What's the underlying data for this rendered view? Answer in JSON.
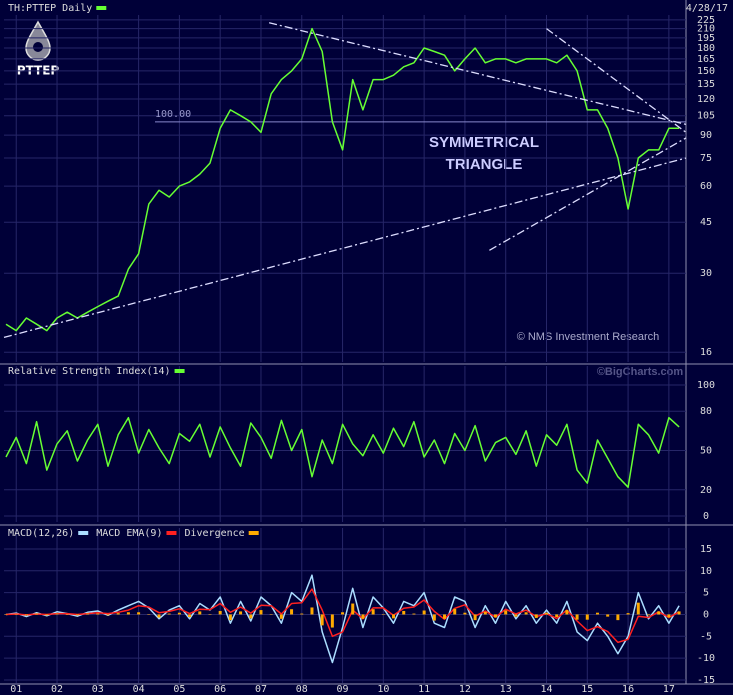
{
  "chart_data": [
    {
      "type": "line",
      "date": "4/28/17",
      "logo": "PTTEP",
      "log_scale": true,
      "grid": true,
      "x": [
        2000.75,
        2001,
        2001.25,
        2001.5,
        2001.75,
        2002,
        2002.25,
        2002.5,
        2002.75,
        2003,
        2003.25,
        2003.5,
        2003.75,
        2004,
        2004.25,
        2004.5,
        2004.75,
        2005,
        2005.25,
        2005.5,
        2005.75,
        2006,
        2006.25,
        2006.5,
        2006.75,
        2007,
        2007.25,
        2007.5,
        2007.75,
        2008,
        2008.25,
        2008.5,
        2008.75,
        2009,
        2009.25,
        2009.5,
        2009.75,
        2010,
        2010.25,
        2010.5,
        2010.75,
        2011,
        2011.25,
        2011.5,
        2011.75,
        2012,
        2012.25,
        2012.5,
        2012.75,
        2013,
        2013.25,
        2013.5,
        2013.75,
        2014,
        2014.25,
        2014.5,
        2014.75,
        2015,
        2015.25,
        2015.5,
        2015.75,
        2016,
        2016.25,
        2016.5,
        2016.75,
        2017,
        2017.25
      ],
      "series": [
        {
          "name": "TH:PTTEP Daily",
          "color": "#66ff33",
          "values": [
            20,
            19,
            21,
            20,
            19,
            21,
            22,
            21,
            22,
            23,
            24,
            25,
            31,
            35,
            52,
            58,
            55,
            60,
            62,
            66,
            72,
            95,
            110,
            105,
            100,
            92,
            125,
            140,
            150,
            165,
            210,
            175,
            100,
            80,
            140,
            110,
            140,
            140,
            145,
            155,
            160,
            180,
            175,
            170,
            150,
            165,
            180,
            160,
            165,
            165,
            160,
            165,
            165,
            165,
            160,
            170,
            150,
            110,
            110,
            95,
            75,
            50,
            75,
            80,
            80,
            95,
            95
          ]
        }
      ],
      "ylim": [
        14.8,
        234
      ],
      "yticks": [
        16,
        30,
        45,
        60,
        75,
        90,
        105,
        120,
        135,
        150,
        165,
        180,
        195,
        210,
        225
      ],
      "reference_line": {
        "value": 100,
        "label": "100.00"
      },
      "trendlines": [
        {
          "x": [
            2000.7,
            2017.42
          ],
          "y": [
            18,
            75
          ]
        },
        {
          "x": [
            2007.2,
            2017.42
          ],
          "y": [
            220,
            98
          ]
        },
        {
          "x": [
            2014.0,
            2017.42
          ],
          "y": [
            210,
            92
          ]
        },
        {
          "x": [
            2012.6,
            2017.42
          ],
          "y": [
            36,
            88
          ]
        }
      ],
      "annotation": [
        "SYMMETRICAL",
        "TRIANGLE"
      ],
      "source": "© NMS Investment Research"
    },
    {
      "type": "line",
      "grid": true,
      "source": "©BigCharts.com",
      "x": [
        2000.75,
        2001,
        2001.25,
        2001.5,
        2001.75,
        2002,
        2002.25,
        2002.5,
        2002.75,
        2003,
        2003.25,
        2003.5,
        2003.75,
        2004,
        2004.25,
        2004.5,
        2004.75,
        2005,
        2005.25,
        2005.5,
        2005.75,
        2006,
        2006.25,
        2006.5,
        2006.75,
        2007,
        2007.25,
        2007.5,
        2007.75,
        2008,
        2008.25,
        2008.5,
        2008.75,
        2009,
        2009.25,
        2009.5,
        2009.75,
        2010,
        2010.25,
        2010.5,
        2010.75,
        2011,
        2011.25,
        2011.5,
        2011.75,
        2012,
        2012.25,
        2012.5,
        2012.75,
        2013,
        2013.25,
        2013.5,
        2013.75,
        2014,
        2014.25,
        2014.5,
        2014.75,
        2015,
        2015.25,
        2015.5,
        2015.75,
        2016,
        2016.25,
        2016.5,
        2016.75,
        2017,
        2017.25
      ],
      "series": [
        {
          "name": "Relative Strength Index(14)",
          "color": "#66ff33",
          "values": [
            45,
            60,
            40,
            72,
            35,
            55,
            65,
            42,
            58,
            70,
            38,
            62,
            75,
            48,
            66,
            52,
            40,
            63,
            57,
            70,
            45,
            68,
            52,
            38,
            71,
            60,
            44,
            73,
            50,
            66,
            30,
            58,
            40,
            70,
            55,
            46,
            62,
            48,
            67,
            53,
            72,
            45,
            58,
            40,
            63,
            50,
            69,
            42,
            56,
            60,
            47,
            65,
            38,
            62,
            54,
            70,
            35,
            25,
            58,
            44,
            30,
            22,
            70,
            62,
            48,
            75,
            68
          ]
        }
      ],
      "ylim": [
        -4.6,
        114.5
      ],
      "yticks": [
        0,
        20,
        50,
        80,
        100
      ]
    },
    {
      "type": "line",
      "grid": true,
      "x": [
        2000.75,
        2001,
        2001.25,
        2001.5,
        2001.75,
        2002,
        2002.25,
        2002.5,
        2002.75,
        2003,
        2003.25,
        2003.5,
        2003.75,
        2004,
        2004.25,
        2004.5,
        2004.75,
        2005,
        2005.25,
        2005.5,
        2005.75,
        2006,
        2006.25,
        2006.5,
        2006.75,
        2007,
        2007.25,
        2007.5,
        2007.75,
        2008,
        2008.25,
        2008.5,
        2008.75,
        2009,
        2009.25,
        2009.5,
        2009.75,
        2010,
        2010.25,
        2010.5,
        2010.75,
        2011,
        2011.25,
        2011.5,
        2011.75,
        2012,
        2012.25,
        2012.5,
        2012.75,
        2013,
        2013.25,
        2013.5,
        2013.75,
        2014,
        2014.25,
        2014.5,
        2014.75,
        2015,
        2015.25,
        2015.5,
        2015.75,
        2016,
        2016.25,
        2016.5,
        2016.75,
        2017,
        2017.25
      ],
      "series": [
        {
          "name": "MACD(12,26)",
          "color": "#aaddff",
          "values": [
            0,
            0.3,
            -0.5,
            0.4,
            -0.3,
            0.6,
            0.2,
            -0.4,
            0.5,
            0.8,
            -0.2,
            1,
            2,
            3,
            1.5,
            -1,
            1,
            2,
            -1,
            2.5,
            1,
            4,
            -2,
            3,
            -1.5,
            4,
            2,
            -2,
            5,
            3,
            9,
            -4,
            -11,
            -3,
            6,
            -3,
            4,
            1.5,
            -2,
            3,
            2,
            5,
            -2,
            -3,
            4,
            3,
            -3,
            2,
            -2,
            3,
            -1,
            2,
            -2,
            1,
            -2,
            3,
            -4,
            -6,
            -2,
            -5,
            -9,
            -5,
            5,
            -1,
            2,
            -2,
            2
          ]
        },
        {
          "name": "MACD EMA(9)",
          "color": "#ff2020",
          "values": [
            0,
            0.1,
            -0.1,
            0.1,
            0,
            0.2,
            0.2,
            0,
            0.2,
            0.4,
            0.2,
            0.5,
            1,
            2,
            1.7,
            0.4,
            0.7,
            1.3,
            0.2,
            1.2,
            1.1,
            2.5,
            0.5,
            1.7,
            0.3,
            2.1,
            2,
            0.1,
            2.5,
            2.7,
            5.8,
            1,
            -5,
            -4,
            1,
            -1,
            1.5,
            1.5,
            -0.2,
            1.4,
            1.7,
            3.3,
            0.7,
            -1.1,
            1.4,
            2.2,
            -0.4,
            0.8,
            -0.6,
            1.2,
            0.1,
            1,
            -0.5,
            0.2,
            -0.9,
            1,
            -1.5,
            -3.7,
            -2.8,
            -3.9,
            -6.4,
            -5.7,
            -0.4,
            -0.7,
            0.6,
            -0.7,
            0.6
          ]
        },
        {
          "name": "Divergence",
          "color": "#ffaa00",
          "type": "bar",
          "values": [
            0,
            0.1,
            -0.2,
            0.2,
            -0.2,
            0.2,
            0,
            -0.2,
            0.2,
            0.2,
            -0.2,
            0.3,
            0.5,
            0.5,
            -0.1,
            -0.7,
            0.2,
            0.4,
            -0.6,
            0.7,
            0,
            0.8,
            -1.3,
            0.7,
            -0.9,
            1,
            0,
            -1,
            1.2,
            0.2,
            1.6,
            -2.5,
            -3,
            0.5,
            2.5,
            -1,
            1.2,
            0,
            -0.9,
            0.8,
            0.2,
            0.9,
            -1.4,
            -1,
            1.3,
            0.4,
            -1.3,
            0.6,
            -0.7,
            0.9,
            -0.5,
            0.5,
            -0.8,
            0.4,
            -0.6,
            1,
            -1.2,
            -1.2,
            0.4,
            -0.5,
            -1.3,
            0.3,
            2.7,
            -0.2,
            0.7,
            -0.7,
            0.7
          ]
        }
      ],
      "ylim": [
        -15.7,
        19.8
      ],
      "yticks": [
        15,
        10,
        5,
        0,
        -5,
        -10,
        -15
      ],
      "xlim": [
        2000.7,
        2017.42
      ],
      "xticks": [
        {
          "value": 2001,
          "label": "01"
        },
        {
          "value": 2002,
          "label": "02"
        },
        {
          "value": 2003,
          "label": "03"
        },
        {
          "value": 2004,
          "label": "04"
        },
        {
          "value": 2005,
          "label": "05"
        },
        {
          "value": 2006,
          "label": "06"
        },
        {
          "value": 2007,
          "label": "07"
        },
        {
          "value": 2008,
          "label": "08"
        },
        {
          "value": 2009,
          "label": "09"
        },
        {
          "value": 2010,
          "label": "10"
        },
        {
          "value": 2011,
          "label": "11"
        },
        {
          "value": 2012,
          "label": "12"
        },
        {
          "value": 2013,
          "label": "13"
        },
        {
          "value": 2014,
          "label": "14"
        },
        {
          "value": 2015,
          "label": "15"
        },
        {
          "value": 2016,
          "label": "16"
        },
        {
          "value": 2017,
          "label": "17"
        }
      ]
    }
  ]
}
